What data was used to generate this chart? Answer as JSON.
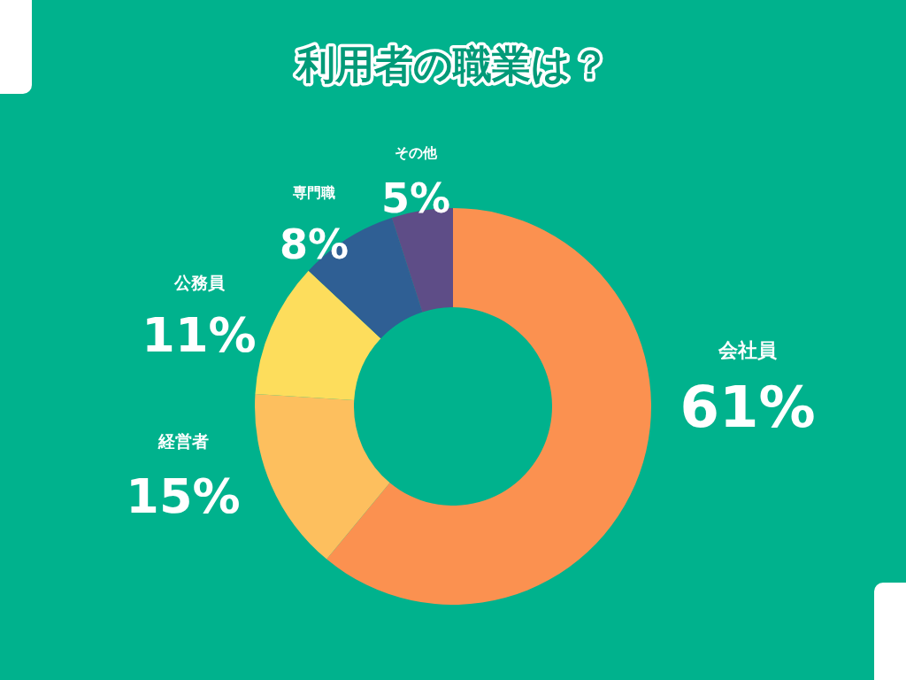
{
  "chart_data": {
    "type": "donut",
    "title": "利用者の職業は？",
    "categories": [
      "会社員",
      "経営者",
      "公務員",
      "専門職",
      "その他"
    ],
    "values": [
      61,
      15,
      11,
      8,
      5
    ],
    "colors": [
      "#fb9150",
      "#fdbf5e",
      "#fddd5c",
      "#2f5f94",
      "#5e4d87"
    ],
    "value_labels": [
      "61%",
      "15%",
      "11%",
      "8%",
      "5%"
    ]
  }
}
